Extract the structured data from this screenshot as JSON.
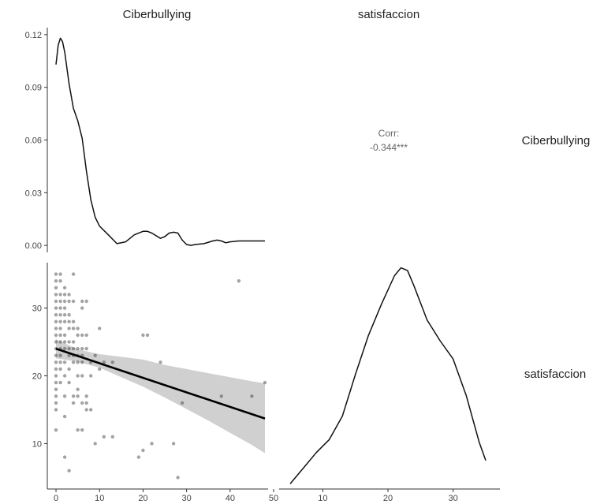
{
  "chart_data": {
    "type": "pairs",
    "variables": [
      "Ciberbullying",
      "satisfaccion"
    ],
    "panels": {
      "density_ciberbullying": {
        "type": "line",
        "x": [
          0,
          0.5,
          1,
          1.5,
          2,
          3,
          4,
          5,
          6,
          7,
          8,
          9,
          10,
          12,
          14,
          16,
          18,
          20,
          21,
          22,
          24,
          25,
          26,
          27,
          28,
          29,
          30,
          31,
          32,
          34,
          36,
          37,
          38,
          39,
          40,
          42,
          44,
          46,
          48
        ],
        "y": [
          0.103,
          0.114,
          0.118,
          0.116,
          0.11,
          0.092,
          0.078,
          0.071,
          0.061,
          0.042,
          0.026,
          0.016,
          0.011,
          0.006,
          0.001,
          0.002,
          0.006,
          0.008,
          0.008,
          0.007,
          0.004,
          0.005,
          0.007,
          0.0075,
          0.007,
          0.003,
          0.0005,
          0.0,
          0.0005,
          0.001,
          0.0025,
          0.003,
          0.0025,
          0.0015,
          0.002,
          0.0025,
          0.0025,
          0.0025,
          0.0025
        ],
        "xlim": [
          -2,
          48
        ],
        "ylim": [
          -0.004,
          0.124
        ],
        "yticks": [
          0.0,
          0.03,
          0.06,
          0.09,
          0.12
        ],
        "ytick_labels": [
          "0.00",
          "0.03",
          "0.06",
          "0.09",
          "0.12"
        ]
      },
      "correlation": {
        "label": "Corr:",
        "value": "-0.344***"
      },
      "scatter": {
        "type": "scatter",
        "x": [
          0,
          0,
          0,
          0,
          0,
          0,
          0,
          0,
          0,
          0,
          0,
          0,
          0,
          0,
          0,
          0,
          0,
          0,
          0,
          0,
          0,
          0,
          1,
          1,
          1,
          1,
          1,
          1,
          1,
          1,
          1,
          1,
          1,
          1,
          1,
          1,
          1,
          2,
          2,
          2,
          2,
          2,
          2,
          2,
          2,
          2,
          2,
          2,
          2,
          2,
          2,
          3,
          3,
          3,
          3,
          3,
          3,
          3,
          3,
          3,
          3,
          3,
          4,
          4,
          4,
          4,
          4,
          4,
          4,
          4,
          4,
          4,
          5,
          5,
          5,
          5,
          5,
          5,
          5,
          5,
          5,
          6,
          6,
          6,
          6,
          6,
          6,
          6,
          6,
          6,
          7,
          7,
          7,
          7,
          7,
          7,
          8,
          8,
          8,
          9,
          9,
          10,
          10,
          11,
          11,
          13,
          13,
          19,
          20,
          20,
          21,
          22,
          24,
          27,
          28,
          29,
          38,
          42,
          45,
          48
        ],
        "y": [
          35,
          34,
          33,
          32,
          31,
          30,
          29,
          28,
          27,
          26,
          25,
          24,
          23,
          22,
          21,
          20,
          19,
          18,
          17,
          16,
          15,
          12,
          35,
          34,
          32,
          31,
          30,
          29,
          28,
          27,
          26,
          25,
          24,
          23,
          22,
          21,
          19,
          33,
          32,
          31,
          30,
          29,
          28,
          26,
          25,
          24,
          22,
          20,
          17,
          14,
          8,
          32,
          31,
          29,
          28,
          27,
          25,
          24,
          23,
          21,
          19,
          6,
          35,
          31,
          28,
          27,
          25,
          24,
          23,
          22,
          17,
          16,
          27,
          26,
          24,
          23,
          22,
          20,
          18,
          17,
          12,
          31,
          30,
          26,
          24,
          23,
          22,
          20,
          16,
          12,
          31,
          26,
          24,
          17,
          16,
          15,
          22,
          20,
          15,
          23,
          10,
          27,
          21,
          22,
          11,
          22,
          11,
          8,
          26,
          9,
          26,
          10,
          22,
          10,
          5,
          16,
          17,
          34,
          17,
          19
        ],
        "xlim": [
          -2,
          48
        ],
        "ylim": [
          3.3,
          36.7
        ],
        "xticks": [
          0,
          10,
          20,
          30,
          40,
          50
        ],
        "yticks": [
          10,
          20,
          30
        ],
        "fit_line": {
          "x": [
            0,
            48
          ],
          "y": [
            24.0,
            13.7
          ]
        },
        "confidence_band": {
          "x": [
            0,
            5,
            10,
            15,
            20,
            25,
            30,
            35,
            40,
            45,
            48
          ],
          "upper": [
            25.4,
            23.9,
            23.2,
            22.8,
            22.4,
            21.6,
            21.0,
            20.4,
            19.8,
            19.2,
            18.9
          ],
          "lower": [
            22.6,
            22.1,
            21.2,
            19.8,
            18.4,
            16.8,
            15.1,
            13.4,
            11.6,
            9.8,
            8.6
          ]
        }
      },
      "density_satisfaccion": {
        "type": "line",
        "x": [
          5,
          7,
          9,
          11,
          13,
          15,
          17,
          19,
          21,
          22,
          23,
          24,
          26,
          28,
          30,
          32,
          34,
          35
        ],
        "y": [
          0.002,
          0.008,
          0.014,
          0.019,
          0.028,
          0.044,
          0.059,
          0.071,
          0.082,
          0.085,
          0.084,
          0.078,
          0.065,
          0.057,
          0.05,
          0.036,
          0.018,
          0.011
        ],
        "xlim": [
          3.3,
          36.7
        ],
        "ylim": [
          0.0,
          0.087
        ],
        "xticks": [
          10,
          20,
          30
        ]
      }
    }
  }
}
